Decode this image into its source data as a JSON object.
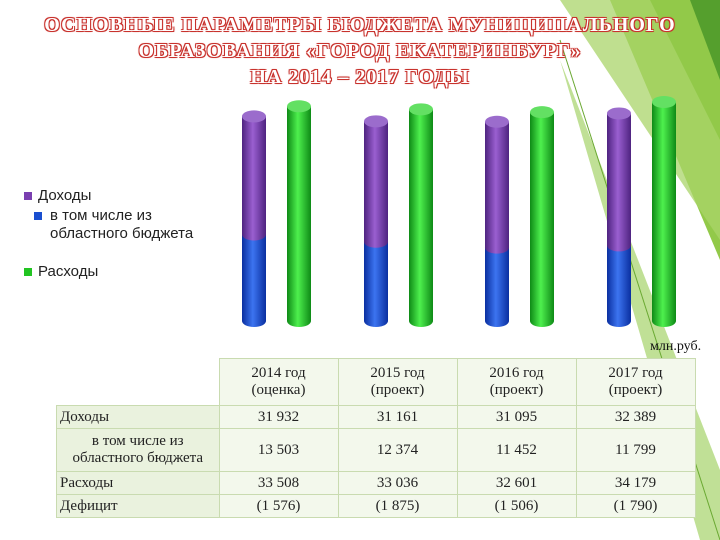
{
  "title": {
    "line1": "ОСНОВНЫЕ ПАРАМЕТРЫ БЮДЖЕТА МУНИЦИПАЛЬНОГО",
    "line2": "ОБРАЗОВАНИЯ «ГОРОД ЕКАТЕРИНБУРГ»",
    "line3": "НА 2014 – 2017 ГОДЫ"
  },
  "unit": "млн.руб.",
  "colors": {
    "income": "#7a3fb0",
    "regional": "#1a4fd0",
    "expenses": "#22c422",
    "title_outline": "#c8322d",
    "deco_green": "#8cc63f"
  },
  "legend": {
    "income": "Доходы",
    "regional_line1": "в том числе из",
    "regional_line2": "областного бюджета",
    "expenses": "Расходы"
  },
  "chart_data": {
    "type": "bar",
    "categories": [
      "2014 год (оценка)",
      "2015 год (проект)",
      "2016 год (проект)",
      "2017 год (проект)"
    ],
    "series": [
      {
        "name": "Доходы",
        "values": [
          31932,
          31161,
          31095,
          32389
        ]
      },
      {
        "name": "в том числе из областного бюджета",
        "values": [
          13503,
          12374,
          11452,
          11799
        ]
      },
      {
        "name": "Расходы",
        "values": [
          33508,
          33036,
          32601,
          34179
        ]
      }
    ],
    "ylim": [
      0,
      34179
    ],
    "legend_position": "left",
    "grid": false
  },
  "table": {
    "columns": [
      {
        "line1": "2014 год",
        "line2": "(оценка)"
      },
      {
        "line1": "2015 год",
        "line2": "(проект)"
      },
      {
        "line1": "2016 год",
        "line2": "(проект)"
      },
      {
        "line1": "2017 год",
        "line2": "(проект)"
      }
    ],
    "rows": [
      {
        "label": "Доходы",
        "values": [
          "31 932",
          "31 161",
          "31 095",
          "32 389"
        ]
      },
      {
        "label_line1": "в том числе из",
        "label_line2": "областного бюджета",
        "values": [
          "13 503",
          "12 374",
          "11 452",
          "11 799"
        ]
      },
      {
        "label": "Расходы",
        "values": [
          "33 508",
          "33 036",
          "32 601",
          "34 179"
        ]
      },
      {
        "label": "Дефицит",
        "values": [
          "(1 576)",
          "(1 875)",
          "(1 506)",
          "(1 790)"
        ]
      }
    ]
  }
}
